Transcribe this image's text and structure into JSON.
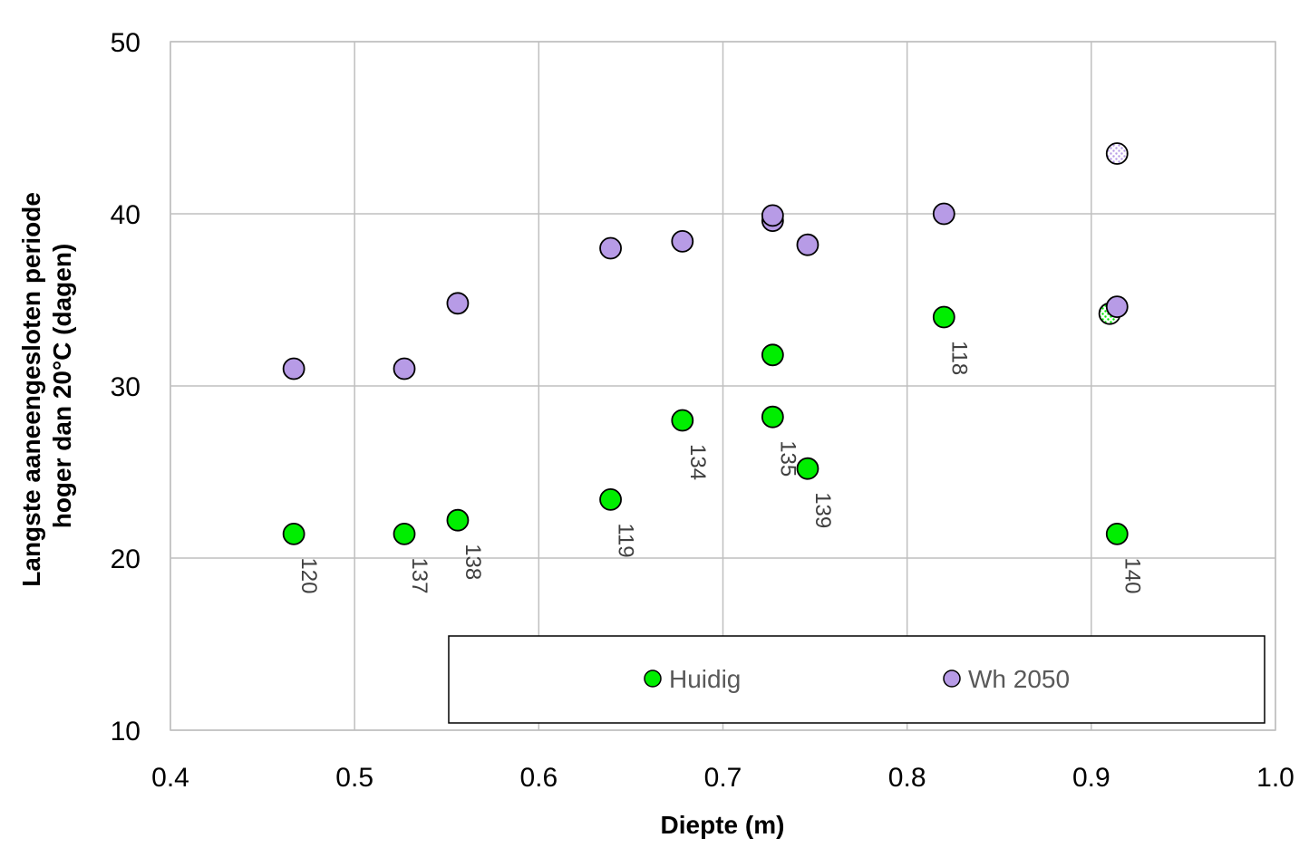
{
  "chart_data": {
    "type": "scatter",
    "xlabel": "Diepte (m)",
    "ylabel_lines": [
      "Langste aaneengesloten periode",
      "hoger dan 20°C (dagen)"
    ],
    "xlim": [
      0.4,
      1.0
    ],
    "ylim": [
      10,
      50
    ],
    "x_ticks": [
      "0.4",
      "0.5",
      "0.6",
      "0.7",
      "0.8",
      "0.9",
      "1.0"
    ],
    "y_ticks": [
      "10",
      "20",
      "30",
      "40",
      "50"
    ],
    "grid": true,
    "legend_position": "bottom-right",
    "colors": {
      "huidig": "#00ee00",
      "wh2050": "#b79be6"
    },
    "series": [
      {
        "name": "Huidig",
        "points": [
          {
            "x": 0.467,
            "y": 21.4,
            "label": "120"
          },
          {
            "x": 0.527,
            "y": 21.4,
            "label": "137"
          },
          {
            "x": 0.556,
            "y": 22.2,
            "label": "138"
          },
          {
            "x": 0.639,
            "y": 23.4,
            "label": "119"
          },
          {
            "x": 0.678,
            "y": 28.0,
            "label": "134"
          },
          {
            "x": 0.727,
            "y": 31.8,
            "label": ""
          },
          {
            "x": 0.727,
            "y": 28.2,
            "label": "135"
          },
          {
            "x": 0.746,
            "y": 25.2,
            "label": "139"
          },
          {
            "x": 0.82,
            "y": 34.0,
            "label": "118"
          },
          {
            "x": 0.91,
            "y": 34.2,
            "label": "",
            "pattern": true
          },
          {
            "x": 0.914,
            "y": 21.4,
            "label": "140"
          }
        ]
      },
      {
        "name": "Wh 2050",
        "points": [
          {
            "x": 0.467,
            "y": 31.0
          },
          {
            "x": 0.527,
            "y": 31.0
          },
          {
            "x": 0.556,
            "y": 34.8
          },
          {
            "x": 0.639,
            "y": 38.0
          },
          {
            "x": 0.678,
            "y": 38.4
          },
          {
            "x": 0.727,
            "y": 39.6
          },
          {
            "x": 0.727,
            "y": 39.9
          },
          {
            "x": 0.746,
            "y": 38.2
          },
          {
            "x": 0.82,
            "y": 40.0
          },
          {
            "x": 0.914,
            "y": 34.6
          },
          {
            "x": 0.914,
            "y": 43.5,
            "pattern": true
          }
        ]
      }
    ]
  }
}
